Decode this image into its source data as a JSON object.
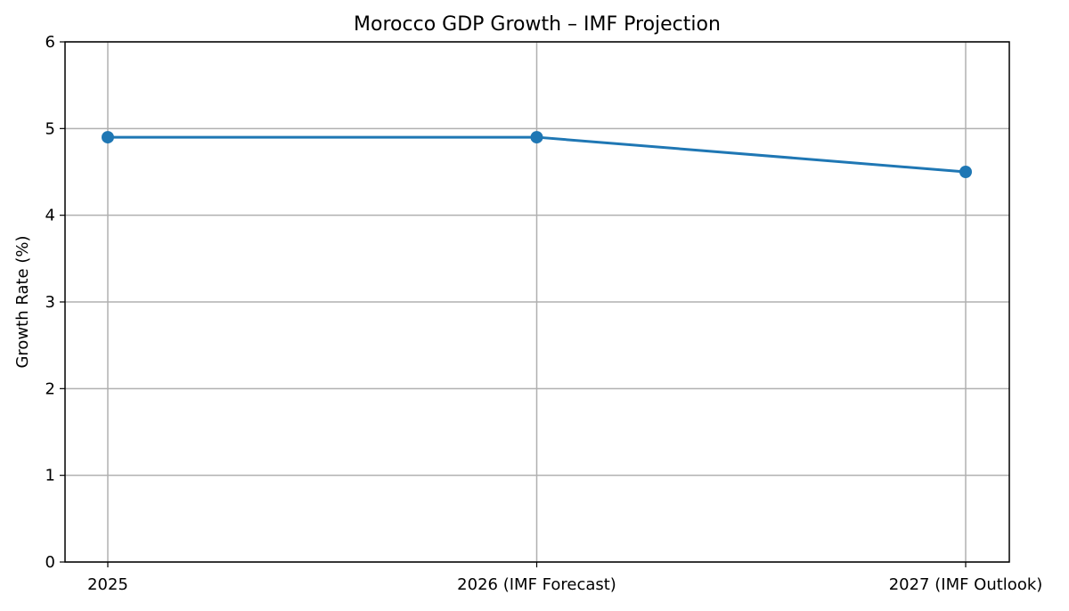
{
  "chart_data": {
    "type": "line",
    "title": "Morocco GDP Growth – IMF Projection",
    "xlabel": "",
    "ylabel": "Growth Rate (%)",
    "categories": [
      "2025",
      "2026 (IMF Forecast)",
      "2027 (IMF Outlook)"
    ],
    "values": [
      4.9,
      4.9,
      4.5
    ],
    "ylim": [
      0,
      6
    ],
    "yticks": [
      "0",
      "1",
      "2",
      "3",
      "4",
      "5",
      "6"
    ],
    "grid": true,
    "marker": "circle",
    "color": "#1f77b4"
  }
}
